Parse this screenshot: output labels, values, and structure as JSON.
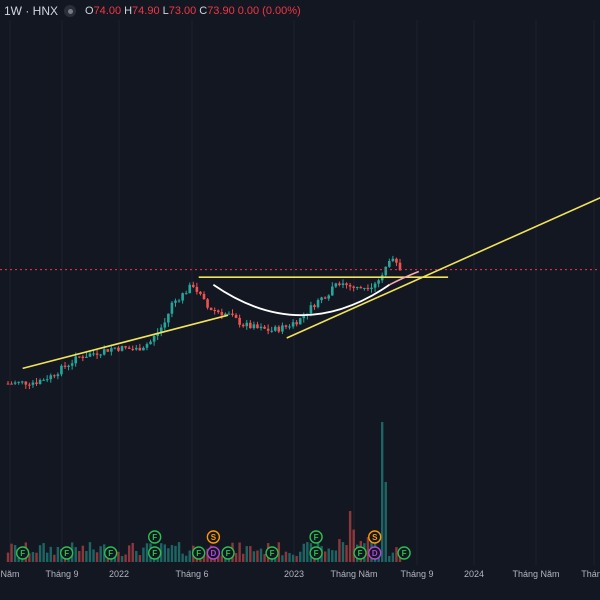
{
  "header": {
    "symbol": "1W · HNX",
    "ohlc": {
      "o_label": "O",
      "o": "74.00",
      "h_label": "H",
      "h": "74.90",
      "l_label": "L",
      "l": "73.00",
      "c_label": "C",
      "c": "73.90",
      "change": "0.00 (0.00%)"
    }
  },
  "colors": {
    "background": "#131722",
    "up": "#26a69a",
    "down": "#ef5350",
    "trendline": "#f0e35a",
    "cup": "#ffffff",
    "price_line": "#f23645",
    "event_green": "#2bbf4e",
    "event_orange": "#ff9800",
    "event_purple": "#b048d9"
  },
  "chart_data": {
    "type": "candlestick",
    "x_ticks": [
      "Năm",
      "Tháng 9",
      "2022",
      "Tháng 6",
      "2023",
      "Tháng Năm",
      "Tháng 9",
      "2024",
      "Tháng Năm",
      "Tháng"
    ],
    "trendlines": [
      {
        "name": "support-1",
        "from": [
          "2021-05",
          12
        ],
        "to": [
          "2022-07",
          26
        ]
      },
      {
        "name": "resistance",
        "from": [
          "2022-05",
          36
        ],
        "to": [
          "2023-10",
          36
        ]
      },
      {
        "name": "support-2",
        "from": [
          "2022-11",
          20
        ],
        "to": [
          "2024-09",
          58
        ]
      }
    ],
    "price_line": 38,
    "events": [
      {
        "date": "2021-05",
        "label": "F",
        "color": "green",
        "row": 2
      },
      {
        "date": "2021-08",
        "label": "F",
        "color": "green",
        "row": 2
      },
      {
        "date": "2021-11",
        "label": "F",
        "color": "green",
        "row": 2
      },
      {
        "date": "2022-02",
        "label": "F",
        "color": "green",
        "row": 1
      },
      {
        "date": "2022-02",
        "label": "F",
        "color": "green",
        "row": 2
      },
      {
        "date": "2022-05",
        "label": "F",
        "color": "green",
        "row": 2
      },
      {
        "date": "2022-06",
        "label": "S",
        "color": "orange",
        "row": 1
      },
      {
        "date": "2022-06",
        "label": "D",
        "color": "purple",
        "row": 2
      },
      {
        "date": "2022-07",
        "label": "F",
        "color": "green",
        "row": 2
      },
      {
        "date": "2022-10",
        "label": "F",
        "color": "green",
        "row": 2
      },
      {
        "date": "2023-01",
        "label": "F",
        "color": "green",
        "row": 1
      },
      {
        "date": "2023-01",
        "label": "F",
        "color": "green",
        "row": 2
      },
      {
        "date": "2023-04",
        "label": "F",
        "color": "green",
        "row": 2
      },
      {
        "date": "2023-05",
        "label": "S",
        "color": "orange",
        "row": 1
      },
      {
        "date": "2023-05",
        "label": "D",
        "color": "purple",
        "row": 2
      },
      {
        "date": "2023-07",
        "label": "F",
        "color": "green",
        "row": 2
      }
    ]
  }
}
